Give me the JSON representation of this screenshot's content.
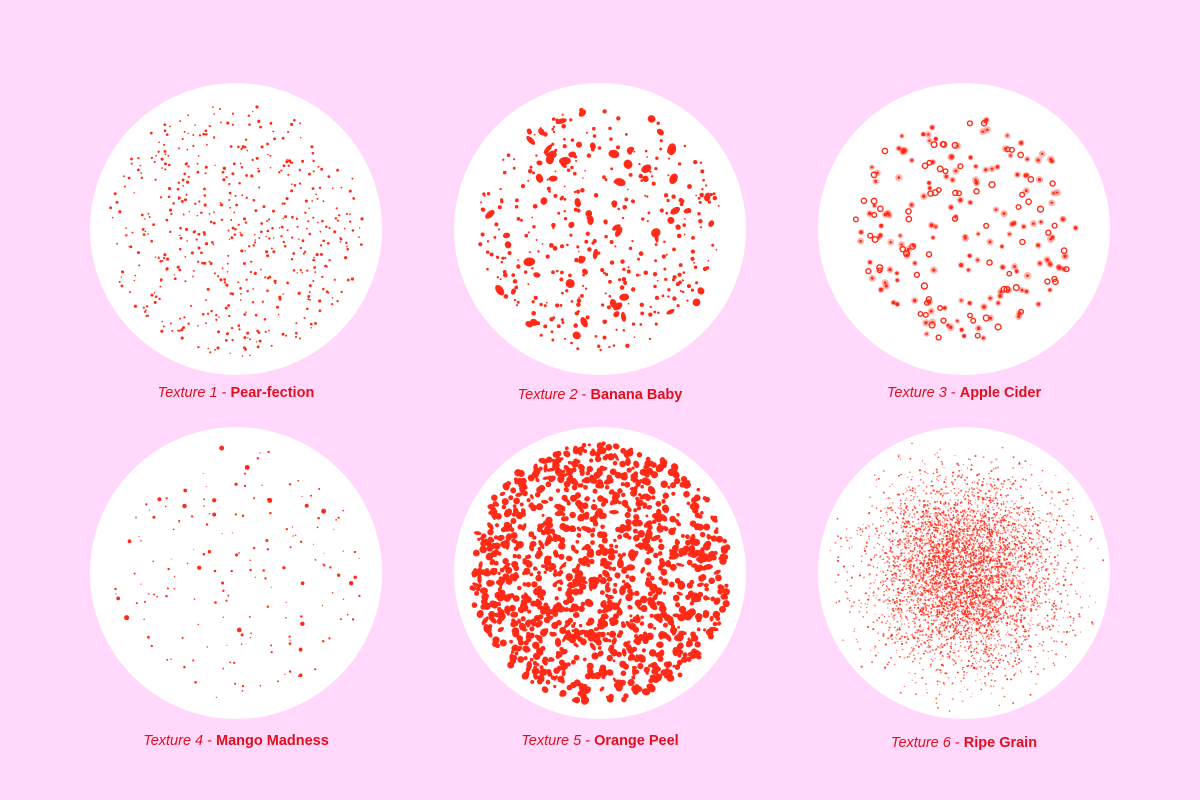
{
  "colors": {
    "background": "#ffd8fb",
    "disc": "#ffffff",
    "ink": "#ff2a17",
    "caption": "#e0101e"
  },
  "separator": "-",
  "textures": [
    {
      "prefix": "Texture 1",
      "name": "Pear-fection",
      "style": "fine-dots"
    },
    {
      "prefix": "Texture 2",
      "name": "Banana Baby",
      "style": "mixed-blobs"
    },
    {
      "prefix": "Texture 3",
      "name": "Apple Cider",
      "style": "soft-rings"
    },
    {
      "prefix": "Texture 4",
      "name": "Mango Madness",
      "style": "sparse-specks"
    },
    {
      "prefix": "Texture 5",
      "name": "Orange Peel",
      "style": "dense-blobs"
    },
    {
      "prefix": "Texture 6",
      "name": "Ripe Grain",
      "style": "grain-cloud"
    }
  ]
}
